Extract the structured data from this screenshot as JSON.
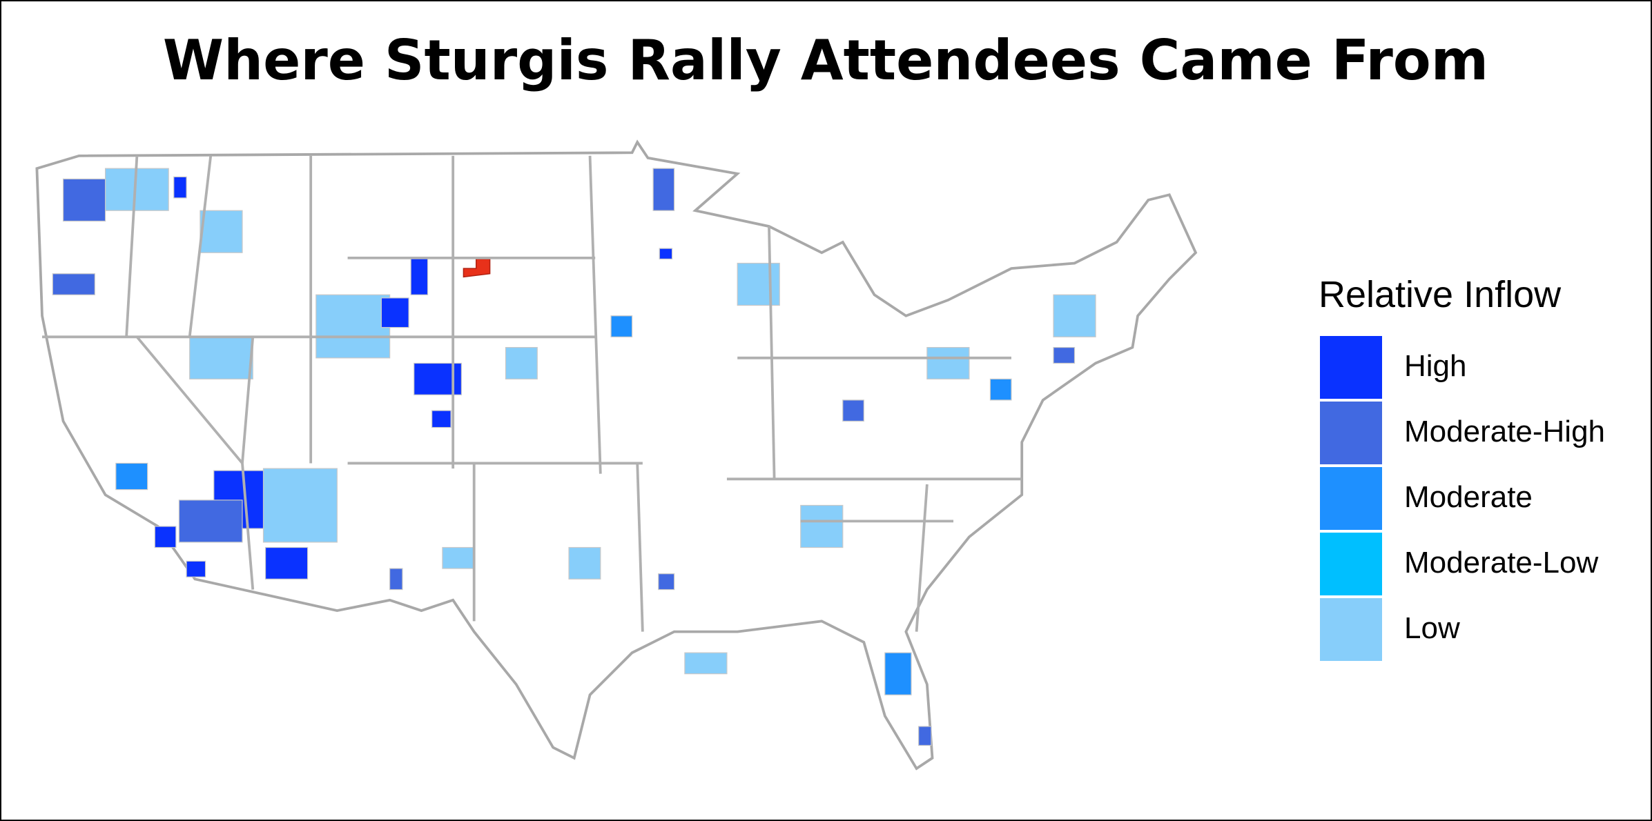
{
  "title": "Where Sturgis Rally Attendees Came From",
  "legend": {
    "title": "Relative Inflow",
    "items": [
      {
        "label": "High",
        "color": "#0a32ff"
      },
      {
        "label": "Moderate-High",
        "color": "#4169e1"
      },
      {
        "label": "Moderate",
        "color": "#1e90ff"
      },
      {
        "label": "Moderate-Low",
        "color": "#00bfff"
      },
      {
        "label": "Low",
        "color": "#87cefa"
      }
    ]
  }
}
